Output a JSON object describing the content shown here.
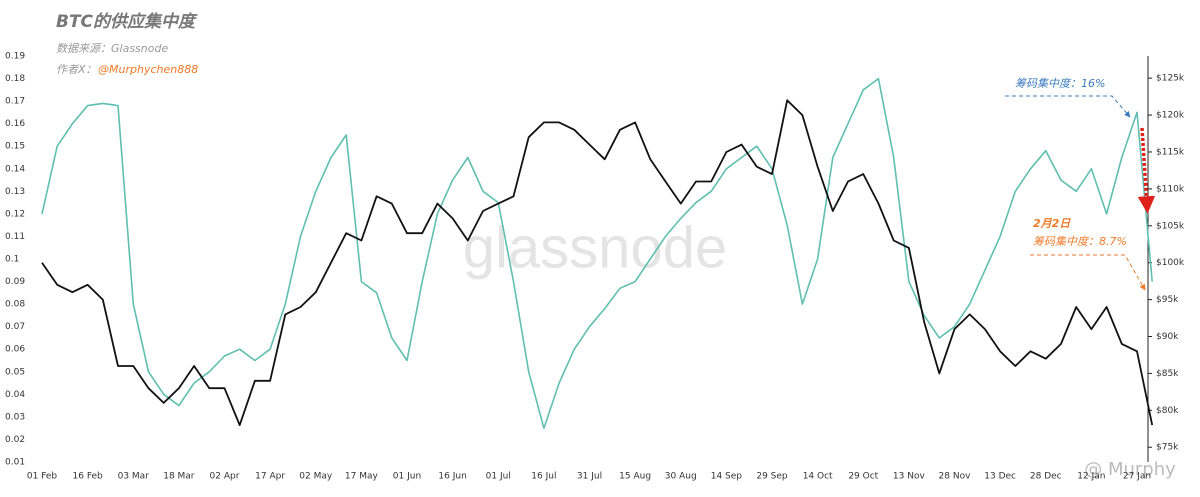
{
  "chart_data": {
    "type": "line",
    "title": "BTC的供应集中度",
    "source": "数据来源：Glassnode",
    "author_prefix": "作者X：",
    "author": "@Murphychen888",
    "watermark": "glassnode",
    "watermark_2": "@ Murphy",
    "annotations": [
      "筹码集中度：16%",
      "2月2日",
      "筹码集中度：8.7%"
    ],
    "categories": [
      "01 Feb",
      null,
      null,
      "16 Feb",
      null,
      null,
      "03 Mar",
      null,
      null,
      "18 Mar",
      null,
      null,
      "02 Apr",
      null,
      null,
      "17 Apr",
      null,
      null,
      "02 May",
      null,
      null,
      "17 May",
      null,
      null,
      "01 Jun",
      null,
      null,
      "16 Jun",
      null,
      null,
      "01 Jul",
      null,
      null,
      "16 Jul",
      null,
      null,
      "31 Jul",
      null,
      null,
      "15 Aug",
      null,
      null,
      "30 Aug",
      null,
      null,
      "14 Sep",
      null,
      null,
      "29 Sep",
      null,
      null,
      "14 Oct",
      null,
      null,
      "29 Oct",
      null,
      null,
      "13 Nov",
      null,
      null,
      "28 Nov",
      null,
      null,
      "13 Dec",
      null,
      null,
      "28 Dec",
      null,
      null,
      "12 Jan",
      null,
      null,
      "27 Jan",
      null
    ],
    "series": [
      {
        "name": "筹码集中度",
        "color": "#5fbfb0",
        "axis": "y",
        "values": [
          0.12,
          0.15,
          0.16,
          0.168,
          0.169,
          0.168,
          0.08,
          0.05,
          0.04,
          0.035,
          0.045,
          0.05,
          0.057,
          0.06,
          0.055,
          0.06,
          0.08,
          0.11,
          0.13,
          0.145,
          0.155,
          0.09,
          0.085,
          0.065,
          0.055,
          0.09,
          0.12,
          0.135,
          0.145,
          0.13,
          0.125,
          0.09,
          0.05,
          0.025,
          0.045,
          0.06,
          0.07,
          0.078,
          0.087,
          0.09,
          0.1,
          0.11,
          0.118,
          0.125,
          0.13,
          0.14,
          0.145,
          0.15,
          0.14,
          0.115,
          0.08,
          0.1,
          0.145,
          0.16,
          0.175,
          0.18,
          0.145,
          0.09,
          0.075,
          0.065,
          0.07,
          0.08,
          0.095,
          0.11,
          0.13,
          0.14,
          0.148,
          0.135,
          0.13,
          0.14,
          0.12,
          0.145,
          0.165,
          0.09
        ]
      },
      {
        "name": "BTC",
        "color": "#111111",
        "axis": "y2",
        "values": [
          100000,
          97000,
          96000,
          97000,
          95000,
          86000,
          86000,
          83000,
          81000,
          83000,
          86000,
          83000,
          83000,
          78000,
          84000,
          84000,
          93000,
          94000,
          96000,
          100000,
          104000,
          103000,
          109000,
          108000,
          104000,
          104000,
          108000,
          106000,
          103000,
          107000,
          108000,
          109000,
          117000,
          119000,
          119000,
          118000,
          116000,
          114000,
          118000,
          119000,
          114000,
          111000,
          108000,
          111000,
          111000,
          115000,
          116000,
          113000,
          112000,
          122000,
          120000,
          113000,
          107000,
          111000,
          112000,
          108000,
          103000,
          102000,
          92000,
          85000,
          91000,
          93000,
          91000,
          88000,
          86000,
          88000,
          87000,
          89000,
          94000,
          91000,
          94000,
          89000,
          88000,
          78000
        ]
      }
    ],
    "ylim": [
      0.01,
      0.19
    ],
    "yticks": [
      0.01,
      0.02,
      0.03,
      0.04,
      0.05,
      0.06,
      0.07,
      0.08,
      0.09,
      0.1,
      0.11,
      0.12,
      0.13,
      0.14,
      0.15,
      0.16,
      0.17,
      0.18,
      0.19
    ],
    "y2lim": [
      73000,
      128000
    ],
    "y2ticks": [
      {
        "value": 75000,
        "label": "$75k"
      },
      {
        "value": 80000,
        "label": "$80k"
      },
      {
        "value": 85000,
        "label": "$85k"
      },
      {
        "value": 90000,
        "label": "$90k"
      },
      {
        "value": 95000,
        "label": "$95k"
      },
      {
        "value": 100000,
        "label": "$100k"
      },
      {
        "value": 105000,
        "label": "$105k"
      },
      {
        "value": 110000,
        "label": "$110k"
      },
      {
        "value": 115000,
        "label": "$115k"
      },
      {
        "value": 120000,
        "label": "$120k"
      },
      {
        "value": 125000,
        "label": "$125k"
      }
    ]
  }
}
